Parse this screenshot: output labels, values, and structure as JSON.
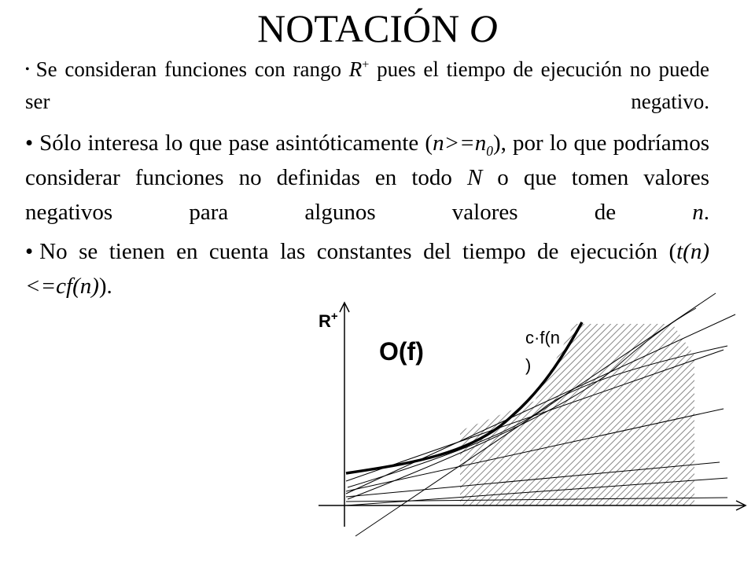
{
  "title": {
    "text": "NOTACIÓN",
    "italic_letter": "O"
  },
  "bullets": [
    {
      "bullet": "•",
      "t1": "Se consideran funciones con rango ",
      "r": "R",
      "r_sup": "+",
      "t2": " pues el tiempo de ejecución no puede ser negativo."
    },
    {
      "bullet": "•",
      "t1": "Sólo interesa lo que pase asintóticamente (",
      "cond": "n>=n",
      "cond_sub": "0",
      "t2": "), por lo que podríamos considerar funciones no definidas en todo ",
      "N": "N",
      "t3": " o que tomen valores negativos para algunos valores de ",
      "n": "n",
      "t4": "."
    },
    {
      "bullet": "•",
      "t1": "No se tienen en cuenta las constantes del tiempo de ejecución (",
      "expr": "t(n)<=cf(n)",
      "t2": ")."
    }
  ],
  "figure": {
    "y_axis_label": "R",
    "y_axis_sup": "+",
    "set_label": "O(f)",
    "curve_label_line1": "c·f(n",
    "curve_label_line2": ")"
  }
}
